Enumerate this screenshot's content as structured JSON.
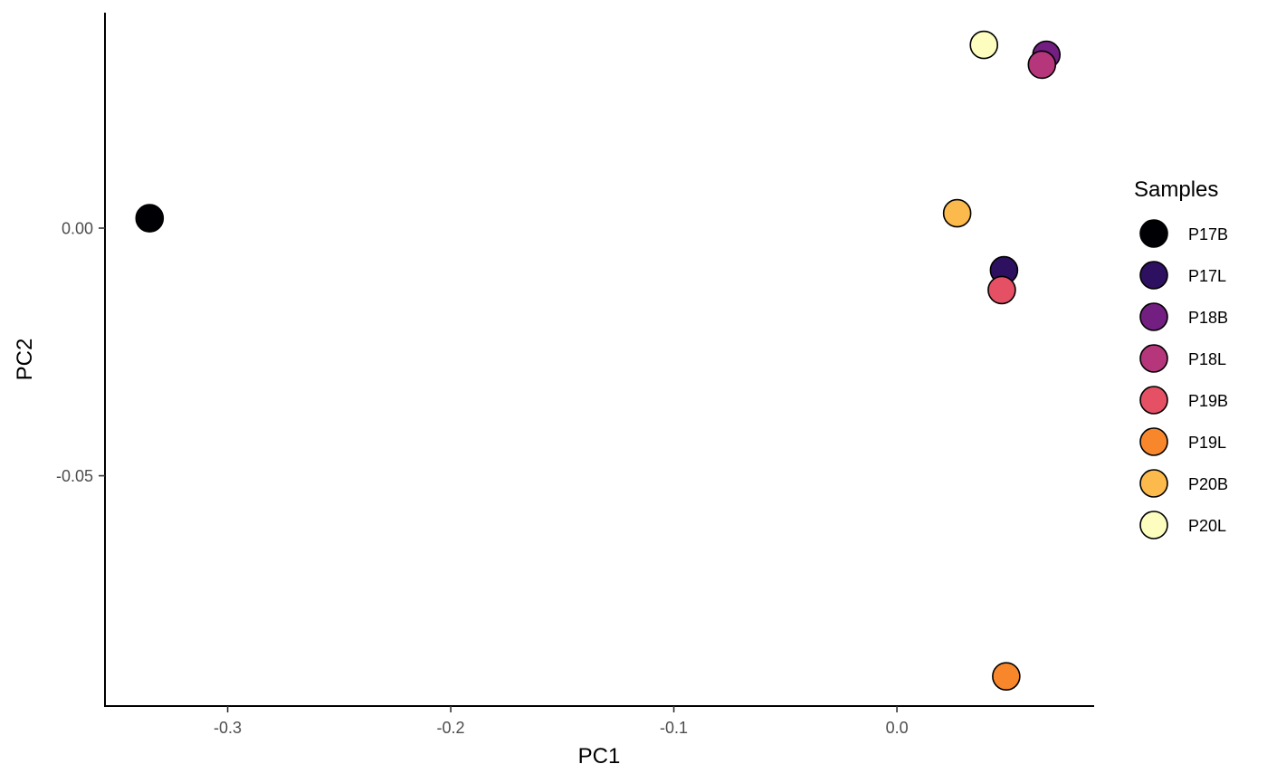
{
  "chart_data": {
    "type": "scatter",
    "xlabel": "PC1",
    "ylabel": "PC2",
    "xlim": [
      -0.355,
      0.088
    ],
    "ylim": [
      -0.0965,
      0.0435
    ],
    "x_ticks": [
      -0.3,
      -0.2,
      -0.1,
      0.0
    ],
    "x_tick_labels": [
      "-0.3",
      "-0.2",
      "-0.1",
      "0.0"
    ],
    "y_ticks": [
      0.0,
      -0.05
    ],
    "y_tick_labels": [
      "0.00",
      "-0.05"
    ],
    "grid": false,
    "legend": {
      "title": "Samples",
      "placement": "right"
    },
    "series": [
      {
        "name": "P17B",
        "color": "#000004",
        "x": -0.335,
        "y": 0.002
      },
      {
        "name": "P17L",
        "color": "#2D1160",
        "x": 0.048,
        "y": -0.0085
      },
      {
        "name": "P18B",
        "color": "#721F81",
        "x": 0.067,
        "y": 0.035
      },
      {
        "name": "P18L",
        "color": "#B5367A",
        "x": 0.065,
        "y": 0.033
      },
      {
        "name": "P19B",
        "color": "#E55064",
        "x": 0.047,
        "y": -0.0125
      },
      {
        "name": "P19L",
        "color": "#F8872C",
        "x": 0.049,
        "y": -0.0905
      },
      {
        "name": "P20B",
        "color": "#FCB94C",
        "x": 0.027,
        "y": 0.003
      },
      {
        "name": "P20L",
        "color": "#FCFDBF",
        "x": 0.039,
        "y": 0.037
      }
    ]
  }
}
